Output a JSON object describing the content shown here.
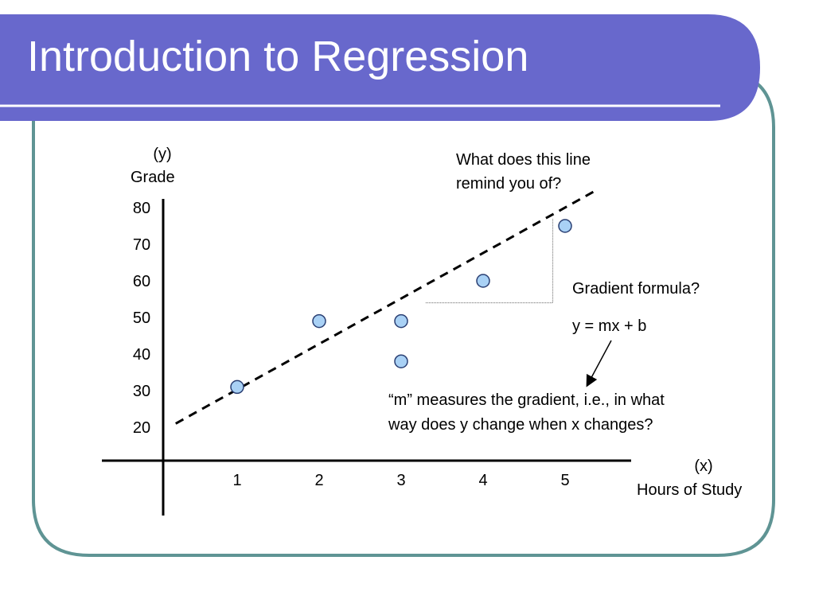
{
  "slide": {
    "title": "Introduction to Regression",
    "colors": {
      "title_band": "#6868cc",
      "frame_border": "#5f9494",
      "point_fill": "#a9d1f5",
      "point_stroke": "#2a3f73"
    }
  },
  "annotations": {
    "question": [
      "What does this line",
      "remind you of?"
    ],
    "gradient_question": "Gradient formula?",
    "equation": "y = mx + b",
    "explanation": [
      "“m” measures the gradient, i.e., in what",
      "way does y change when x changes?"
    ]
  },
  "chart_data": {
    "type": "scatter",
    "title": "",
    "y_axis": {
      "symbol": "(y)",
      "label": "Grade",
      "ticks": [
        "80",
        "70",
        "60",
        "50",
        "40",
        "30",
        "20"
      ]
    },
    "x_axis": {
      "symbol": "(x)",
      "label": "Hours of Study",
      "ticks": [
        "1",
        "2",
        "3",
        "4",
        "5"
      ]
    },
    "points": [
      {
        "x": 1,
        "y": 31
      },
      {
        "x": 2,
        "y": 49
      },
      {
        "x": 3,
        "y": 49
      },
      {
        "x": 3,
        "y": 38
      },
      {
        "x": 4,
        "y": 60
      },
      {
        "x": 5,
        "y": 75
      }
    ],
    "trend_line": {
      "style": "dashed",
      "from": {
        "x": 0.25,
        "y": 21
      },
      "to": {
        "x": 5.4,
        "y": 85
      }
    },
    "gradient_triangle": {
      "x1": 3.3,
      "x2": 4.85,
      "y_low": 54,
      "y_high": 77
    },
    "annotation_arrow": {
      "to": "explanation",
      "from": "equation"
    }
  }
}
